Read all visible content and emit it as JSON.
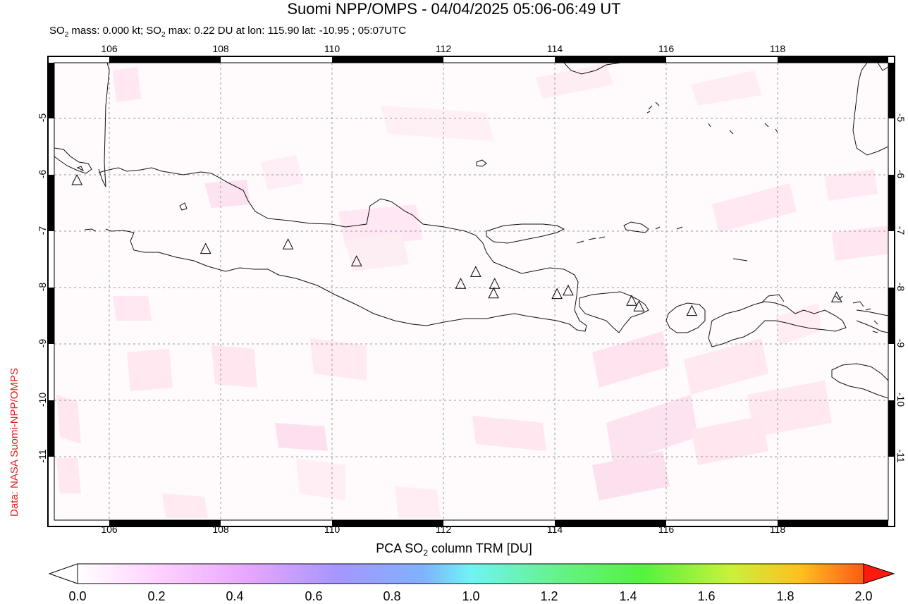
{
  "header": {
    "title": "Suomi NPP/OMPS - 04/04/2025 05:06-06:49 UT",
    "subtitle_prefix": "SO",
    "subtitle_mid1": " mass: 0.000 kt; SO",
    "subtitle_rest": " max: 0.22 DU at lon: 115.90 lat: -10.95 ; 05:07UTC",
    "sub_2": "2"
  },
  "credit": "Data: NASA Suomi-NPP/OMPS",
  "axes": {
    "lon_ticks": [
      "106",
      "108",
      "110",
      "112",
      "114",
      "116",
      "118"
    ],
    "lat_ticks": [
      "-5",
      "-6",
      "-7",
      "-8",
      "-9",
      "-10",
      "-11"
    ]
  },
  "colorbar": {
    "title_prefix": "PCA SO",
    "title_sub": "2",
    "title_suffix": " column TRM [DU]",
    "ticks": [
      "0.0",
      "0.2",
      "0.4",
      "0.6",
      "0.8",
      "1.0",
      "1.2",
      "1.4",
      "1.6",
      "1.8",
      "2.0"
    ],
    "colors": [
      "#ffffff",
      "#ffd2ff",
      "#e6a5ff",
      "#a696ff",
      "#7fb2ff",
      "#6ef4f4",
      "#66f28a",
      "#55f23f",
      "#c8f23a",
      "#ffbf1f",
      "#ff5a14",
      "#ff1a10"
    ]
  },
  "volcanoes": [
    {
      "lon": 105.42,
      "lat": -6.1
    },
    {
      "lon": 107.73,
      "lat": -7.32
    },
    {
      "lon": 109.21,
      "lat": -7.24
    },
    {
      "lon": 110.44,
      "lat": -7.54
    },
    {
      "lon": 112.31,
      "lat": -7.94
    },
    {
      "lon": 112.58,
      "lat": -7.73
    },
    {
      "lon": 112.92,
      "lat": -7.94
    },
    {
      "lon": 112.9,
      "lat": -8.11
    },
    {
      "lon": 114.04,
      "lat": -8.12
    },
    {
      "lon": 114.24,
      "lat": -8.06
    },
    {
      "lon": 115.38,
      "lat": -8.24
    },
    {
      "lon": 115.51,
      "lat": -8.34
    },
    {
      "lon": 116.46,
      "lat": -8.42
    },
    {
      "lon": 119.06,
      "lat": -8.18
    }
  ]
}
